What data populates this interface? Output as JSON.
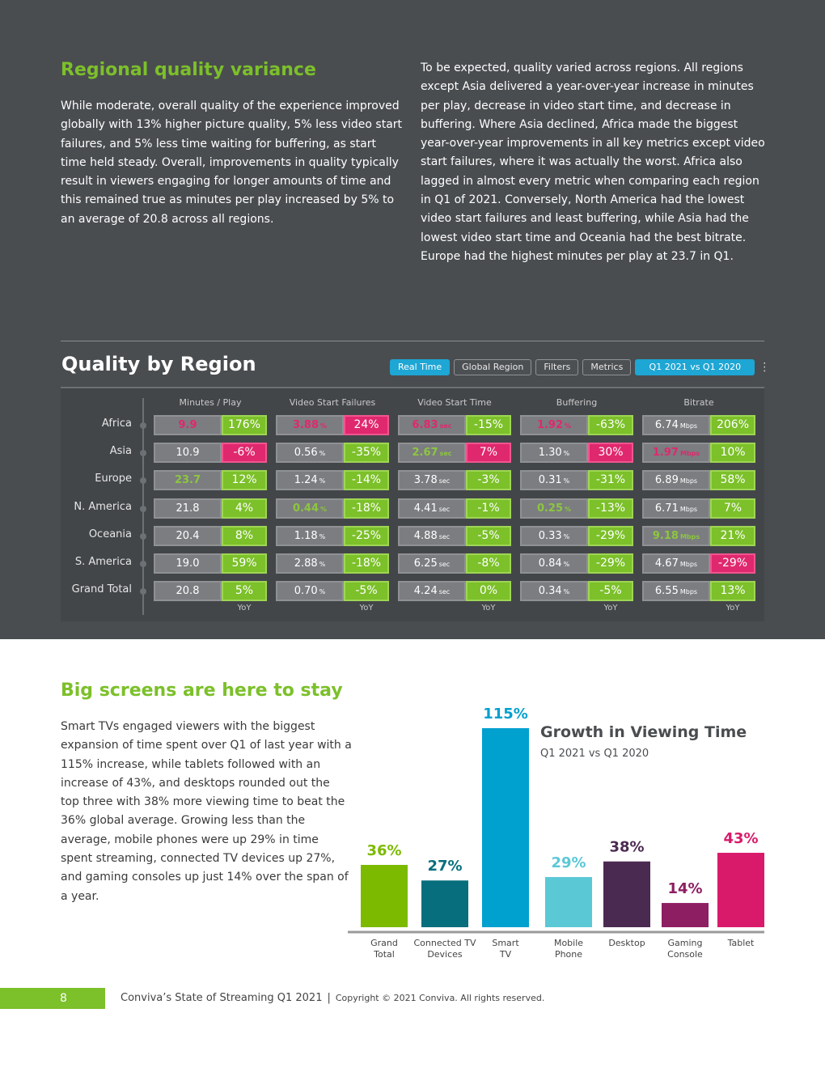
{
  "section1": {
    "title": "Regional quality variance",
    "left_text": "While moderate, overall quality of the experience improved globally with 13% higher picture quality, 5% less video start failures, and 5% less time waiting for buffering, as start time held steady. Overall, improvements in quality typically result in viewers engaging for longer amounts of time and this remained true as minutes per play increased by 5% to an average of 20.8 across all regions.",
    "right_text": "To be expected, quality varied across regions. All regions except Asia delivered a year-over-year increase in minutes per play, decrease in video start time, and decrease in buffering. Where Asia declined, Africa made the biggest year-over-year improvements in all key metrics except video start failures, where it was actually the worst. Africa also lagged in almost every metric when comparing each region in Q1 of 2021. Conversely, North America had the lowest video start failures and least buffering, while Asia had the lowest video start time and Oceania had the best bitrate. Europe had the highest minutes per play at 23.7 in Q1."
  },
  "quality": {
    "title": "Quality by Region",
    "buttons": [
      "Real Time",
      "Global Region",
      "Filters",
      "Metrics"
    ],
    "period": "Q1 2021 vs Q1 2020",
    "menu_icon": "⋮",
    "columns": [
      "Minutes / Play",
      "Video Start Failures",
      "Video Start Time",
      "Buffering",
      "Bitrate"
    ],
    "yoy_label": "YoY",
    "rows": [
      {
        "region": "Africa",
        "cells": [
          {
            "v": "9.9",
            "u": "",
            "s": "neg",
            "y": "176%",
            "c": "g"
          },
          {
            "v": "3.88",
            "u": "%",
            "s": "neg",
            "y": "24%",
            "c": "p"
          },
          {
            "v": "6.83",
            "u": "sec",
            "s": "neg",
            "y": "-15%",
            "c": "g"
          },
          {
            "v": "1.92",
            "u": "%",
            "s": "neg",
            "y": "-63%",
            "c": "g"
          },
          {
            "v": "6.74",
            "u": "Mbps",
            "s": "",
            "y": "206%",
            "c": "g"
          }
        ]
      },
      {
        "region": "Asia",
        "cells": [
          {
            "v": "10.9",
            "u": "",
            "s": "",
            "y": "-6%",
            "c": "p"
          },
          {
            "v": "0.56",
            "u": "%",
            "s": "",
            "y": "-35%",
            "c": "g"
          },
          {
            "v": "2.67",
            "u": "sec",
            "s": "pos",
            "y": "7%",
            "c": "p"
          },
          {
            "v": "1.30",
            "u": "%",
            "s": "",
            "y": "30%",
            "c": "p"
          },
          {
            "v": "1.97",
            "u": "Mbps",
            "s": "neg",
            "y": "10%",
            "c": "g"
          }
        ]
      },
      {
        "region": "Europe",
        "cells": [
          {
            "v": "23.7",
            "u": "",
            "s": "pos",
            "y": "12%",
            "c": "g"
          },
          {
            "v": "1.24",
            "u": "%",
            "s": "",
            "y": "-14%",
            "c": "g"
          },
          {
            "v": "3.78",
            "u": "sec",
            "s": "",
            "y": "-3%",
            "c": "g"
          },
          {
            "v": "0.31",
            "u": "%",
            "s": "",
            "y": "-31%",
            "c": "g"
          },
          {
            "v": "6.89",
            "u": "Mbps",
            "s": "",
            "y": "58%",
            "c": "g"
          }
        ]
      },
      {
        "region": "N. America",
        "cells": [
          {
            "v": "21.8",
            "u": "",
            "s": "",
            "y": "4%",
            "c": "g"
          },
          {
            "v": "0.44",
            "u": "%",
            "s": "pos",
            "y": "-18%",
            "c": "g"
          },
          {
            "v": "4.41",
            "u": "sec",
            "s": "",
            "y": "-1%",
            "c": "g"
          },
          {
            "v": "0.25",
            "u": "%",
            "s": "pos",
            "y": "-13%",
            "c": "g"
          },
          {
            "v": "6.71",
            "u": "Mbps",
            "s": "",
            "y": "7%",
            "c": "g"
          }
        ]
      },
      {
        "region": "Oceania",
        "cells": [
          {
            "v": "20.4",
            "u": "",
            "s": "",
            "y": "8%",
            "c": "g"
          },
          {
            "v": "1.18",
            "u": "%",
            "s": "",
            "y": "-25%",
            "c": "g"
          },
          {
            "v": "4.88",
            "u": "sec",
            "s": "",
            "y": "-5%",
            "c": "g"
          },
          {
            "v": "0.33",
            "u": "%",
            "s": "",
            "y": "-29%",
            "c": "g"
          },
          {
            "v": "9.18",
            "u": "Mbps",
            "s": "pos",
            "y": "21%",
            "c": "g"
          }
        ]
      },
      {
        "region": "S. America",
        "cells": [
          {
            "v": "19.0",
            "u": "",
            "s": "",
            "y": "59%",
            "c": "g"
          },
          {
            "v": "2.88",
            "u": "%",
            "s": "",
            "y": "-18%",
            "c": "g"
          },
          {
            "v": "6.25",
            "u": "sec",
            "s": "",
            "y": "-8%",
            "c": "g"
          },
          {
            "v": "0.84",
            "u": "%",
            "s": "",
            "y": "-29%",
            "c": "g"
          },
          {
            "v": "4.67",
            "u": "Mbps",
            "s": "",
            "y": "-29%",
            "c": "p"
          }
        ]
      },
      {
        "region": "Grand Total",
        "cells": [
          {
            "v": "20.8",
            "u": "",
            "s": "",
            "y": "5%",
            "c": "g"
          },
          {
            "v": "0.70",
            "u": "%",
            "s": "",
            "y": "-5%",
            "c": "g"
          },
          {
            "v": "4.24",
            "u": "sec",
            "s": "",
            "y": "0%",
            "c": "g"
          },
          {
            "v": "0.34",
            "u": "%",
            "s": "",
            "y": "-5%",
            "c": "g"
          },
          {
            "v": "6.55",
            "u": "Mbps",
            "s": "",
            "y": "13%",
            "c": "g"
          }
        ]
      }
    ]
  },
  "section2": {
    "title": "Big screens are here to stay",
    "text": "Smart TVs engaged viewers with the biggest expansion of time spent over Q1 of last year with a 115% increase, while tablets followed with an increase of 43%, and desktops rounded out the top three with 38% more viewing time to beat the 36% global average. Growing less than the average, mobile phones were up 29% in time spent streaming, connected TV devices up 27%, and gaming consoles up just 14% over the span of a year."
  },
  "chart_data": {
    "type": "bar",
    "title": "Growth in Viewing Time",
    "subtitle": "Q1 2021 vs Q1 2020",
    "categories": [
      [
        "Grand",
        "Total"
      ],
      [
        "Connected TV",
        "Devices"
      ],
      [
        "Smart",
        "TV"
      ],
      [
        "Mobile",
        "Phone"
      ],
      [
        "Desktop"
      ],
      [
        "Gaming",
        "Console"
      ],
      [
        "Tablet"
      ]
    ],
    "values": [
      36,
      27,
      115,
      29,
      38,
      14,
      43
    ],
    "value_labels": [
      "36%",
      "27%",
      "115%",
      "29%",
      "38%",
      "14%",
      "43%"
    ],
    "colors": [
      "#7cba00",
      "#066e7d",
      "#00a0cf",
      "#5bc8d6",
      "#4b2a52",
      "#8e1e62",
      "#d91a6a"
    ],
    "ylim": [
      0,
      115
    ]
  },
  "colors": {
    "green": "#7cc02a",
    "dark_bg": "#4a4d50",
    "pink": "#e0286e",
    "blue": "#1ea6d4"
  },
  "footer": {
    "page": "8",
    "publication": "Conviva’s State of Streaming Q1 2021",
    "separator": "|",
    "copyright": "Copyright © 2021 Conviva. All rights reserved."
  }
}
